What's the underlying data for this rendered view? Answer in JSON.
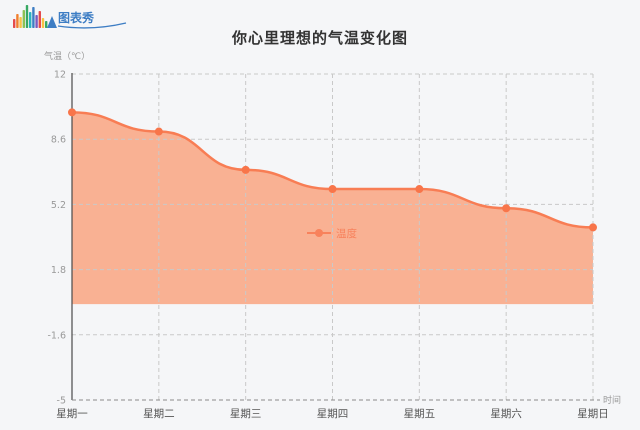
{
  "logo": {
    "text": "图表秀",
    "text_color": "#3d7dc4",
    "palette": [
      "#e54b4b",
      "#f07f2d",
      "#f6c243",
      "#8cc153",
      "#37a862",
      "#2bb3c0",
      "#3d7dc4",
      "#7a5bbf",
      "#e54b4b",
      "#f6c243",
      "#37a862",
      "#2bb3c0"
    ]
  },
  "title": "你心里理想的气温变化图",
  "chart_data": {
    "type": "area",
    "title": "你心里理想的气温变化图",
    "categories": [
      "星期一",
      "星期二",
      "星期三",
      "星期四",
      "星期五",
      "星期六",
      "星期日"
    ],
    "series": [
      {
        "name": "温度",
        "values": [
          10,
          9,
          7,
          6,
          6,
          5,
          4
        ]
      }
    ],
    "xlabel": "时间",
    "ylabel": "气温（℃）",
    "ylim": [
      -5,
      12
    ],
    "y_ticks": [
      12,
      8.6,
      5.2,
      1.8,
      -1.6,
      -5
    ],
    "y_tick_labels": [
      "12",
      "8.6",
      "5.2",
      "1.8",
      "-1.6",
      "-5"
    ],
    "area_baseline": 0,
    "grid": true,
    "grid_style": "dashed",
    "legend": {
      "label": "温度",
      "position": "center"
    },
    "colors": {
      "line": "#f87d54",
      "fill": "#f9aa8a",
      "dot": "#f8754a",
      "legend": "#f8825c",
      "grid": "#c9c9c9",
      "axis": "#4a4a4a",
      "x_axis": "#8a8a8a",
      "tick_text": "#999999",
      "x_label_text": "#555555",
      "title_text": "#333333",
      "background": "#f5f6f8"
    }
  }
}
